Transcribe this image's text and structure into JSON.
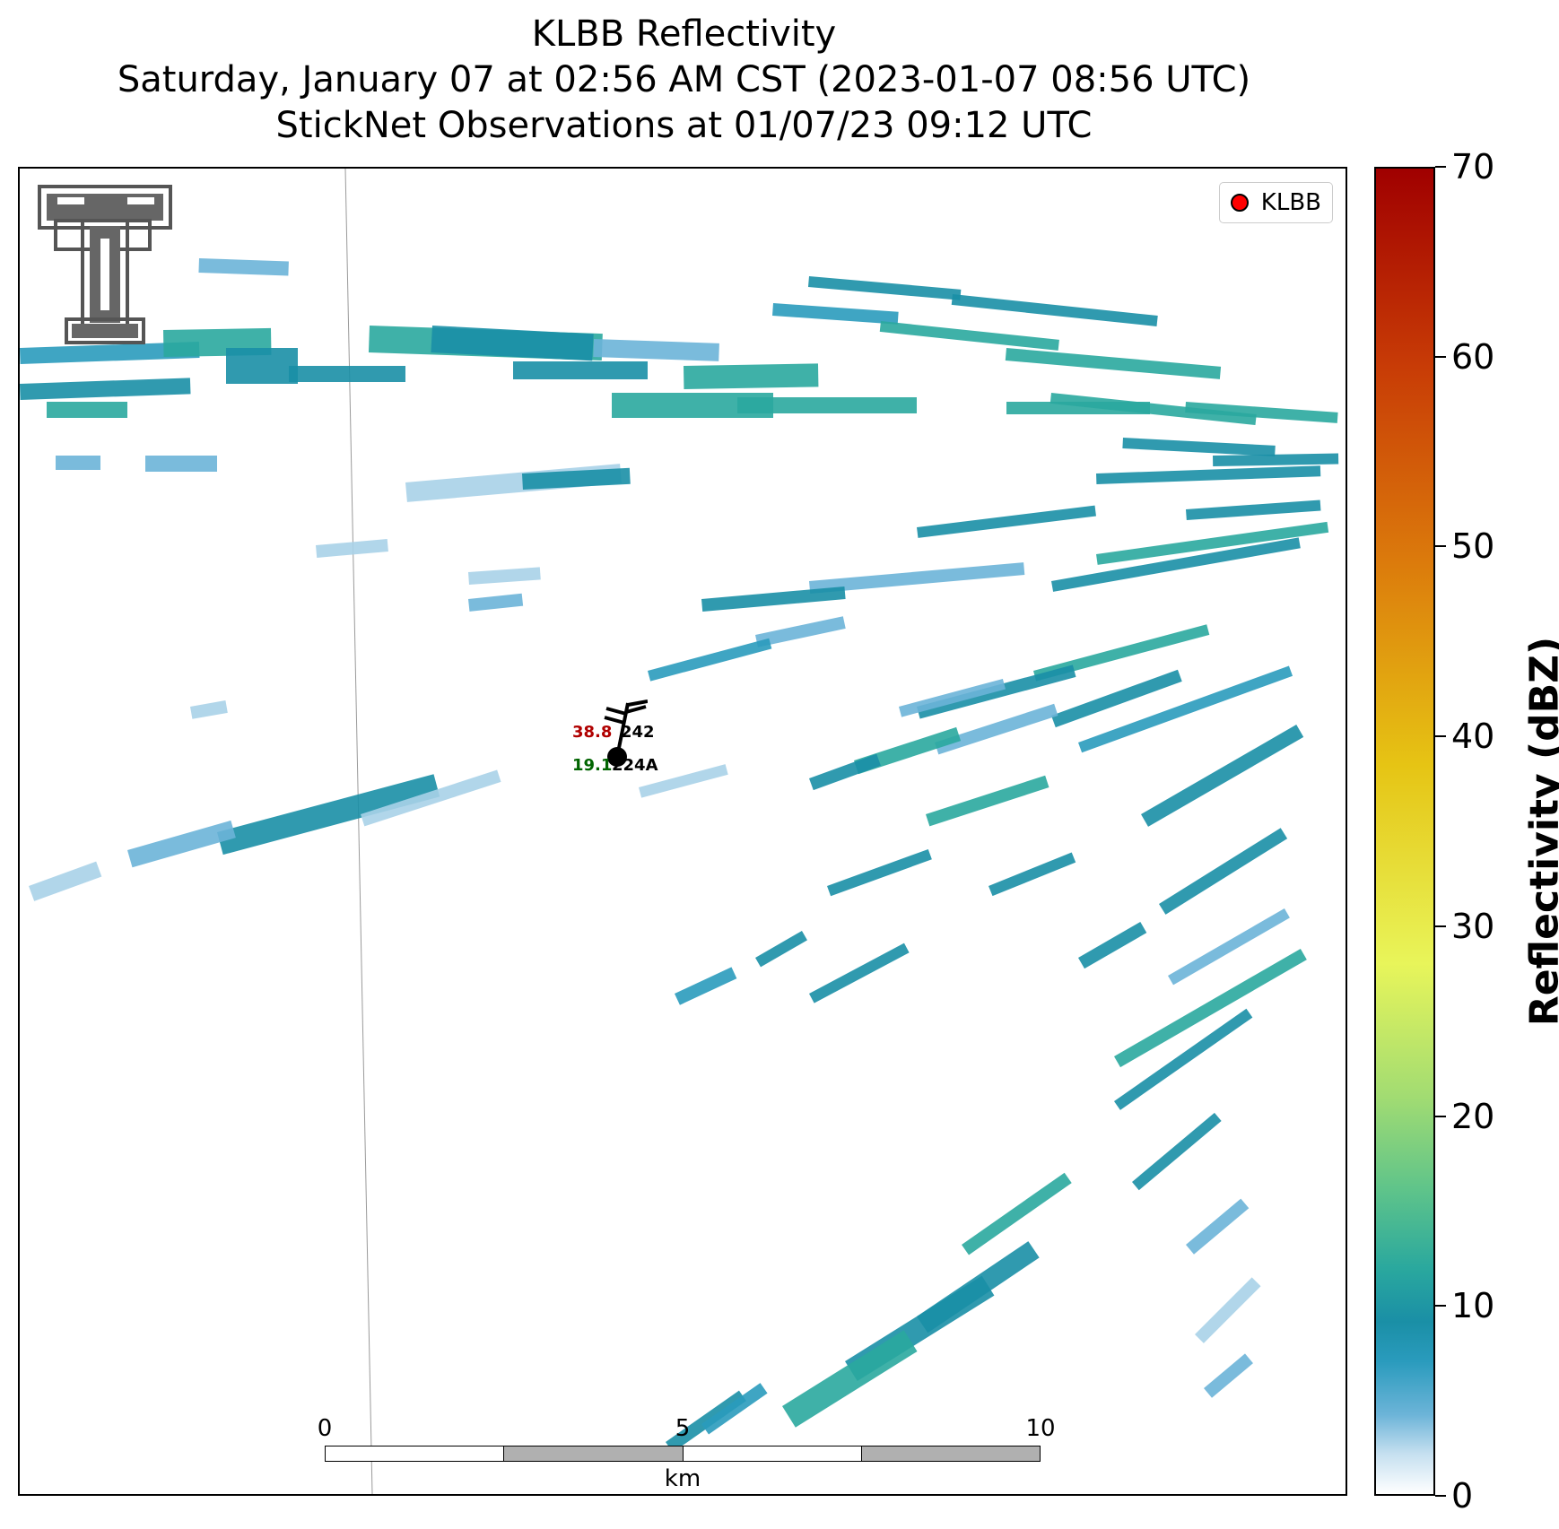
{
  "title": {
    "line1": "KLBB Reflectivity",
    "line2": "Saturday, January 07 at 02:56 AM CST (2023-01-07 08:56 UTC)",
    "line3": "StickNet Observations at 01/07/23 09:12 UTC"
  },
  "legend": {
    "label": "KLBB",
    "marker_color": "#ff0000"
  },
  "stations": [
    {
      "id": "242",
      "value": "38.8",
      "value_color": "#b00000"
    },
    {
      "id": "224A",
      "value": "19.1",
      "value_color": "#006400"
    }
  ],
  "scale_bar": {
    "ticks": [
      "0",
      "5",
      "10"
    ],
    "unit": "km"
  },
  "colorbar": {
    "title": "Reflectivity (dBZ)",
    "ticks": [
      "0",
      "10",
      "20",
      "30",
      "40",
      "50",
      "60",
      "70"
    ],
    "range": [
      0,
      70
    ]
  },
  "logo": {
    "text": "TT",
    "icon": "texas-tech-double-t-logo"
  },
  "colors": {
    "low": "#c6e0f0",
    "mid": "#1a8fa6",
    "teal": "#2aa89e",
    "green": "#5fc48a"
  }
}
